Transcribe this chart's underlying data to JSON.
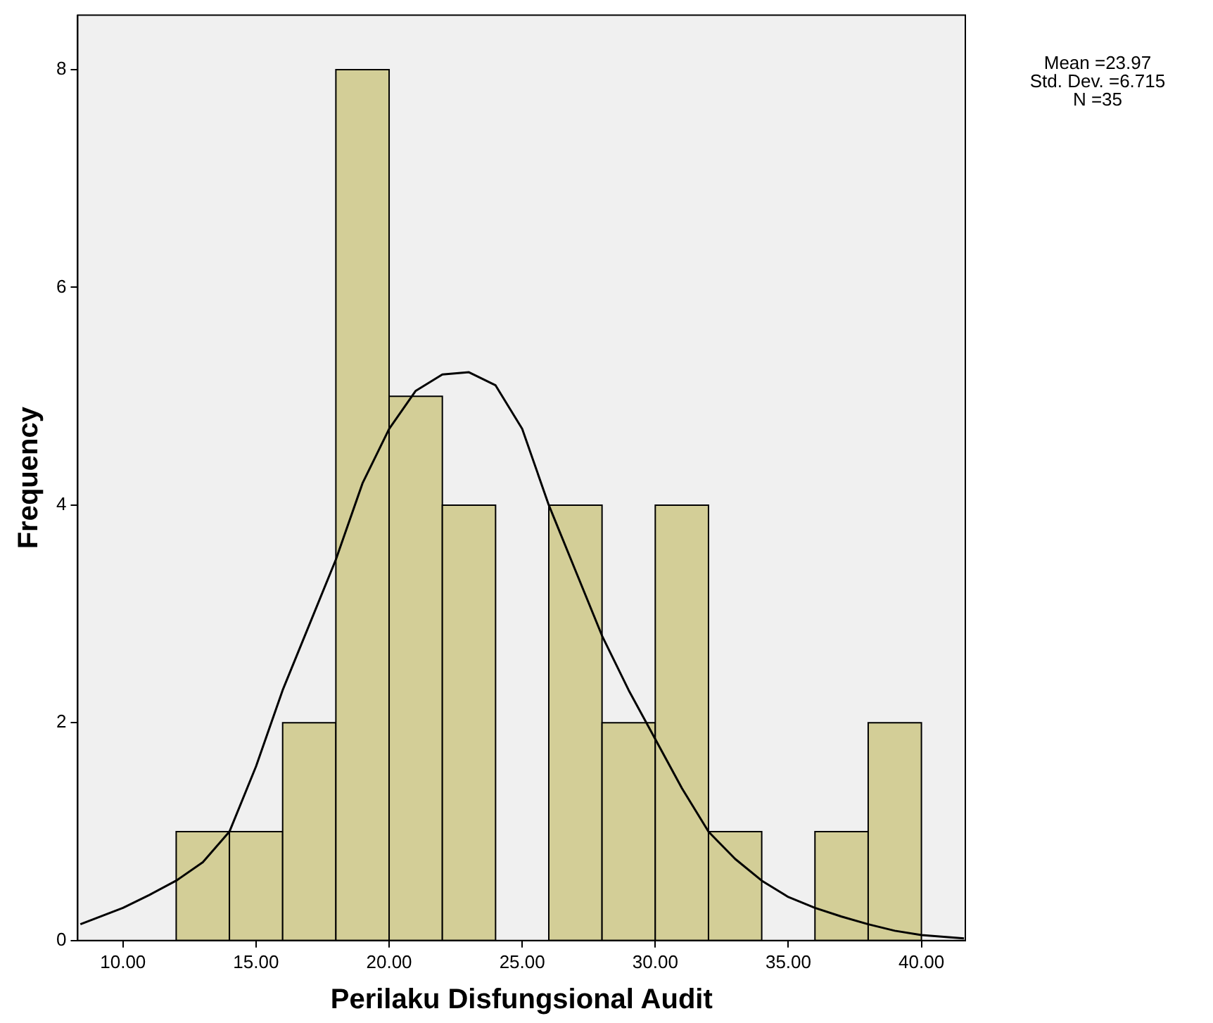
{
  "chart_data": {
    "type": "histogram",
    "xlabel": "Perilaku Disfungsional Audit",
    "ylabel": "Frequency",
    "bins": [
      12,
      14,
      16,
      18,
      20,
      22,
      24,
      26,
      28,
      30,
      32,
      34,
      36,
      38,
      40
    ],
    "values": [
      1,
      1,
      2,
      8,
      5,
      4,
      0,
      4,
      2,
      4,
      1,
      0,
      1,
      2
    ],
    "color": "#d3ce97",
    "series": [
      {
        "type": "line",
        "color": "#000000",
        "x": [
          8.4,
          10,
          11,
          12,
          13,
          14,
          15,
          16,
          17,
          18,
          19,
          20,
          21,
          22,
          23,
          24,
          25,
          26,
          27,
          28,
          29,
          30,
          31,
          32,
          33,
          34,
          35,
          36,
          37,
          38,
          39,
          40,
          41.6
        ],
        "values": [
          0.15,
          0.3,
          0.42,
          0.55,
          0.72,
          1.0,
          1.6,
          2.3,
          2.9,
          3.5,
          4.2,
          4.7,
          5.05,
          5.2,
          5.22,
          5.1,
          4.7,
          4.0,
          3.4,
          2.8,
          2.3,
          1.85,
          1.4,
          1.0,
          0.75,
          0.55,
          0.4,
          0.3,
          0.22,
          0.15,
          0.09,
          0.05,
          0.02
        ]
      }
    ],
    "xlim": [
      8.3,
      41.65
    ],
    "ylim": [
      0,
      8.5
    ],
    "xticks": [
      {
        "value": 10,
        "label": "10.00"
      },
      {
        "value": 15,
        "label": "15.00"
      },
      {
        "value": 20,
        "label": "20.00"
      },
      {
        "value": 25,
        "label": "25.00"
      },
      {
        "value": 30,
        "label": "30.00"
      },
      {
        "value": 35,
        "label": "35.00"
      },
      {
        "value": 40,
        "label": "40.00"
      }
    ],
    "yticks": [
      0,
      2,
      4,
      6,
      8
    ],
    "grid": false,
    "legend": false,
    "marker": "none",
    "line_style": "solid",
    "annotations": [
      "Mean =23.97",
      "Std. Dev. =6.715",
      "N =35"
    ]
  }
}
